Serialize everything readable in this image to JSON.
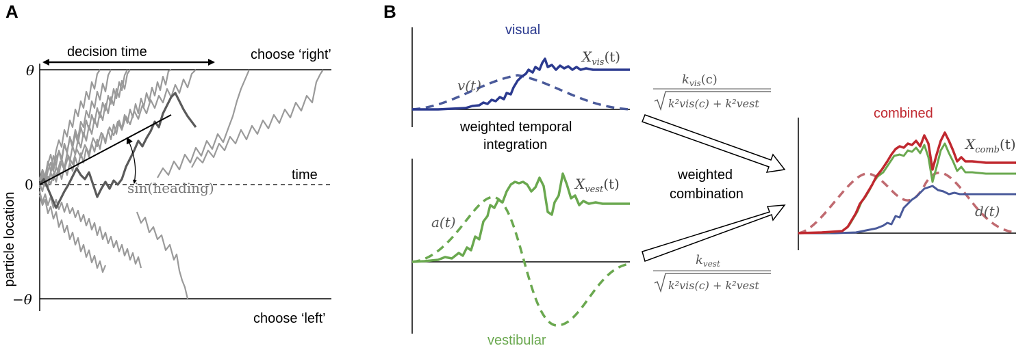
{
  "panel_a": {
    "letter": "A",
    "decision_time_label": "decision time",
    "choose_right_label": "choose ‘right’",
    "choose_left_label": "choose ‘left’",
    "theta_label": "θ",
    "neg_theta_label": "−θ",
    "zero_label": "0",
    "time_label": "time",
    "y_axis_label": "particle location",
    "angle_label": "sin(heading)"
  },
  "panel_b": {
    "letter": "B",
    "visual_label": "visual",
    "vestibular_label": "vestibular",
    "combined_label": "combined",
    "weighted_temporal_line1": "weighted temporal",
    "weighted_temporal_line2": "integration",
    "weighted_combination_line1": "weighted",
    "weighted_combination_line2": "combination",
    "x_vis": "X",
    "x_vis_sub": "vis",
    "x_vest": "X",
    "x_vest_sub": "vest",
    "x_comb": "X",
    "x_comb_sub": "comb",
    "t_arg": "(t)",
    "v_t": "v(t)",
    "a_t": "a(t)",
    "d_t": "d(t)",
    "frac_top_num": "k",
    "frac_top_num_sub": "vis",
    "frac_top_num_arg": "(c)",
    "frac_bot_num": "k",
    "frac_bot_num_sub": "vest",
    "frac_den_text": "k²vis(c) + k²vest"
  },
  "colors": {
    "visual": "#2b3a8f",
    "visual_dash": "#4a5a9a",
    "vestibular": "#6aa84f",
    "combined": "#c0282f",
    "combined_dash": "#c06a70",
    "gray_trace": "#9a9a9a",
    "dark_trace": "#5a5a5a"
  }
}
